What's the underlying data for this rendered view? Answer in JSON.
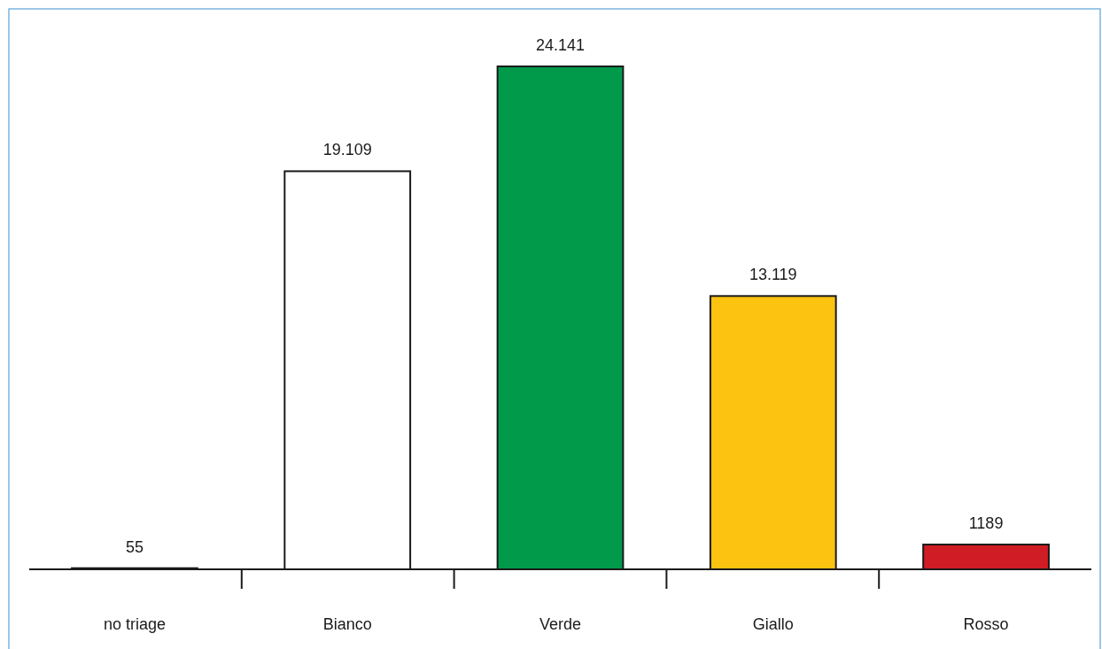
{
  "chart_data": {
    "type": "bar",
    "categories": [
      "no triage",
      "Bianco",
      "Verde",
      "Giallo",
      "Rosso"
    ],
    "values": [
      55,
      19109,
      24141,
      13119,
      1189
    ],
    "colors": [
      "#ffffff",
      "#ffffff",
      "#009a4a",
      "#fdc311",
      "#d01c24"
    ],
    "value_labels": [
      "55",
      "19.109",
      "24.141",
      "13.119",
      "1189"
    ]
  }
}
